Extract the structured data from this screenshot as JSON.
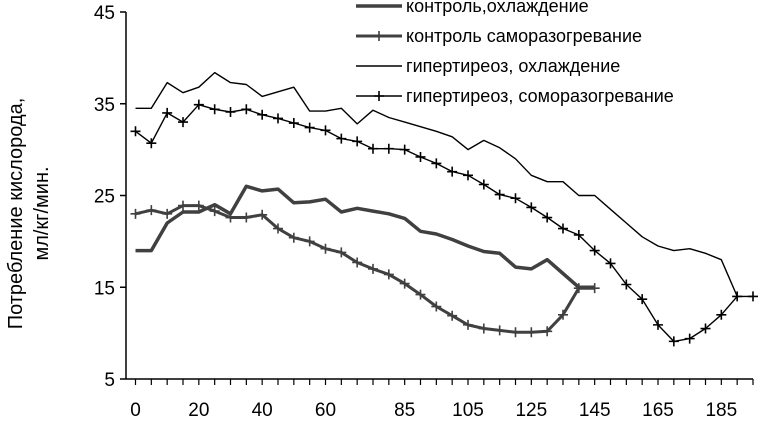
{
  "chart_data": {
    "type": "line",
    "title": "",
    "xlabel": "",
    "ylabel": "Потребление кислорода, мл/кг/мин.",
    "ylabel_lines": [
      "Потребление кислорода,",
      "мл/кг/мин."
    ],
    "xlim": [
      -3,
      195
    ],
    "ylim": [
      5,
      45
    ],
    "x_ticks": [
      0,
      20,
      40,
      60,
      85,
      105,
      125,
      145,
      165,
      185
    ],
    "x_tick_labels": [
      "0",
      "20",
      "40",
      "60",
      "85",
      "105",
      "125",
      "145",
      "165",
      "185"
    ],
    "y_ticks": [
      5,
      15,
      25,
      35,
      45
    ],
    "y_tick_labels": [
      "5",
      "15",
      "25",
      "35",
      "45"
    ],
    "grid": false,
    "legend_position": "top-right",
    "series": [
      {
        "name": "контроль,охлаждение",
        "color": "#404040",
        "marker": "none",
        "x": [
          0,
          5,
          10,
          15,
          20,
          25,
          30,
          35,
          40,
          45,
          50,
          55,
          60,
          65,
          70,
          75,
          80,
          85,
          90,
          95,
          100,
          105,
          110,
          115,
          120,
          125,
          130,
          135,
          140,
          145
        ],
        "y": [
          19,
          19,
          22,
          23.2,
          23.2,
          24,
          23,
          26,
          25.5,
          25.7,
          24.2,
          24.3,
          24.6,
          23.2,
          23.6,
          23.3,
          23,
          22.5,
          21.1,
          20.8,
          20.2,
          19.5,
          18.9,
          18.7,
          17.2,
          17,
          18,
          16.5,
          15,
          15
        ]
      },
      {
        "name": "контроль саморазогревание",
        "color": "#404040",
        "marker": "plus",
        "x": [
          0,
          5,
          10,
          15,
          20,
          25,
          30,
          35,
          40,
          45,
          50,
          55,
          60,
          65,
          70,
          75,
          80,
          85,
          90,
          95,
          100,
          105,
          110,
          115,
          120,
          125,
          130,
          135,
          140,
          145
        ],
        "y": [
          23,
          23.4,
          23,
          23.9,
          23.9,
          23.3,
          22.6,
          22.6,
          22.9,
          21.4,
          20.4,
          20,
          19.2,
          18.8,
          17.7,
          17,
          16.4,
          15.4,
          14.2,
          12.9,
          11.9,
          10.9,
          10.5,
          10.3,
          10.1,
          10.1,
          10.2,
          12,
          14.9,
          14.9
        ]
      },
      {
        "name": "гипертиреоз, охлаждение",
        "color": "#000000",
        "marker": "none",
        "x": [
          0,
          5,
          10,
          15,
          20,
          25,
          30,
          35,
          40,
          45,
          50,
          55,
          60,
          65,
          70,
          75,
          80,
          85,
          90,
          95,
          100,
          105,
          110,
          115,
          120,
          125,
          130,
          135,
          140,
          145,
          150,
          155,
          160,
          165,
          170,
          175,
          180,
          185,
          190
        ],
        "y": [
          34.5,
          34.5,
          37.3,
          36.2,
          36.8,
          38.4,
          37.3,
          37.1,
          35.8,
          36.3,
          36.8,
          34.2,
          34.2,
          34.5,
          32.8,
          34.3,
          33.5,
          33,
          32.5,
          32,
          31.4,
          30,
          31,
          30.2,
          29,
          27.2,
          26.5,
          26.5,
          25,
          25,
          23.5,
          22,
          20.5,
          19.5,
          19,
          19.2,
          18.7,
          18,
          14
        ]
      },
      {
        "name": "гипертиреоз, соморазогревание",
        "color": "#000000",
        "marker": "plus",
        "x": [
          0,
          5,
          10,
          15,
          20,
          25,
          30,
          35,
          40,
          45,
          50,
          55,
          60,
          65,
          70,
          75,
          80,
          85,
          90,
          95,
          100,
          105,
          110,
          115,
          120,
          125,
          130,
          135,
          140,
          145,
          150,
          155,
          160,
          165,
          170,
          175,
          180,
          185,
          190,
          195
        ],
        "y": [
          32,
          30.7,
          34,
          33,
          34.9,
          34.4,
          34.1,
          34.4,
          33.8,
          33.4,
          32.9,
          32.4,
          32.1,
          31.2,
          30.9,
          30.1,
          30.1,
          30,
          29.2,
          28.5,
          27.6,
          27.2,
          26.2,
          25.1,
          24.7,
          23.7,
          22.6,
          21.4,
          20.7,
          19,
          17.6,
          15.3,
          13.7,
          10.9,
          9.1,
          9.4,
          10.5,
          12,
          14,
          14
        ]
      }
    ]
  }
}
